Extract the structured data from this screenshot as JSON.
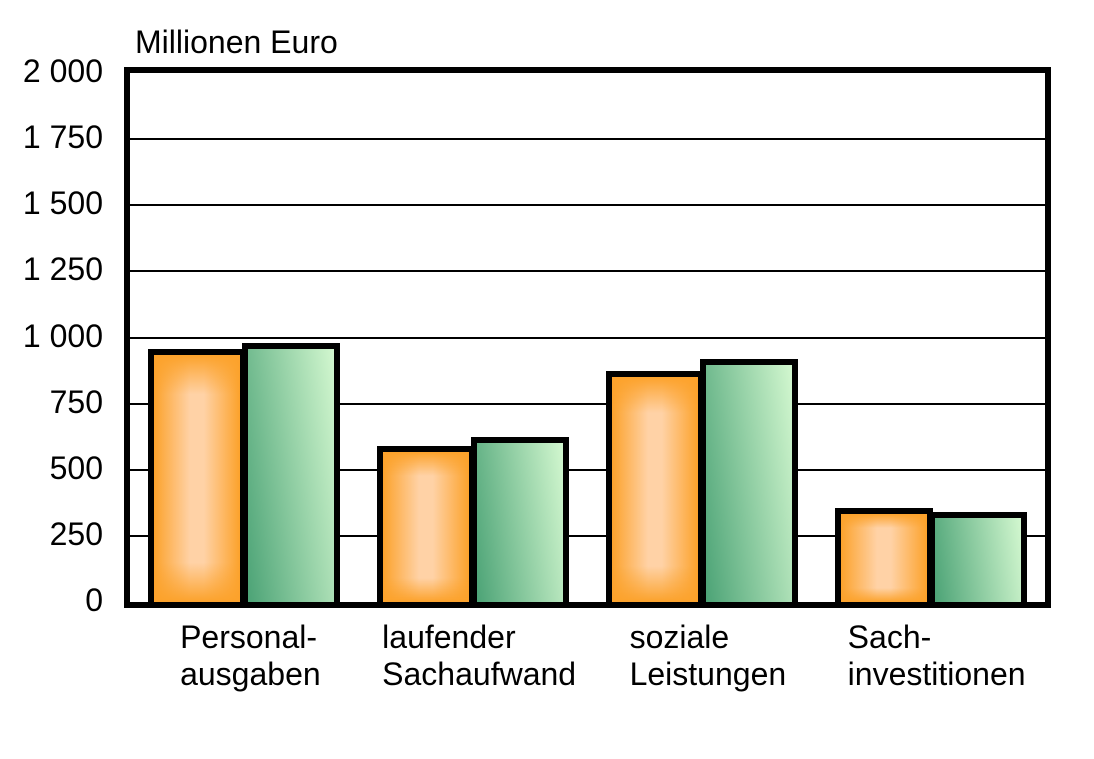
{
  "chart_data": {
    "type": "bar",
    "title": "Millionen Euro",
    "categories": [
      {
        "lines": [
          "Personal-",
          "ausgaben"
        ]
      },
      {
        "lines": [
          "laufender",
          "Sachaufwand"
        ]
      },
      {
        "lines": [
          "soziale",
          "Leistungen"
        ]
      },
      {
        "lines": [
          "Sach-",
          "investitionen"
        ]
      }
    ],
    "series": [
      {
        "name": "orange-series",
        "color_edge": "#FCA22B",
        "color_center": "#FFD2A6",
        "values": [
          955,
          590,
          875,
          355
        ]
      },
      {
        "name": "green-series",
        "color_dark": "#4CA376",
        "color_light": "#D2F7CF",
        "values": [
          980,
          625,
          920,
          340
        ]
      }
    ],
    "ylabel": "Millionen Euro",
    "ylim": [
      0,
      2000
    ],
    "ytick_values": [
      0,
      250,
      500,
      750,
      1000,
      1250,
      1500,
      1750,
      2000
    ],
    "ytick_labels": [
      "0",
      "250",
      "500",
      "750",
      "1 000",
      "1 250",
      "1 500",
      "1 750",
      "2 000"
    ],
    "grid": true,
    "legend": false,
    "border_color": "#000000",
    "background": "#FFFFFF"
  }
}
